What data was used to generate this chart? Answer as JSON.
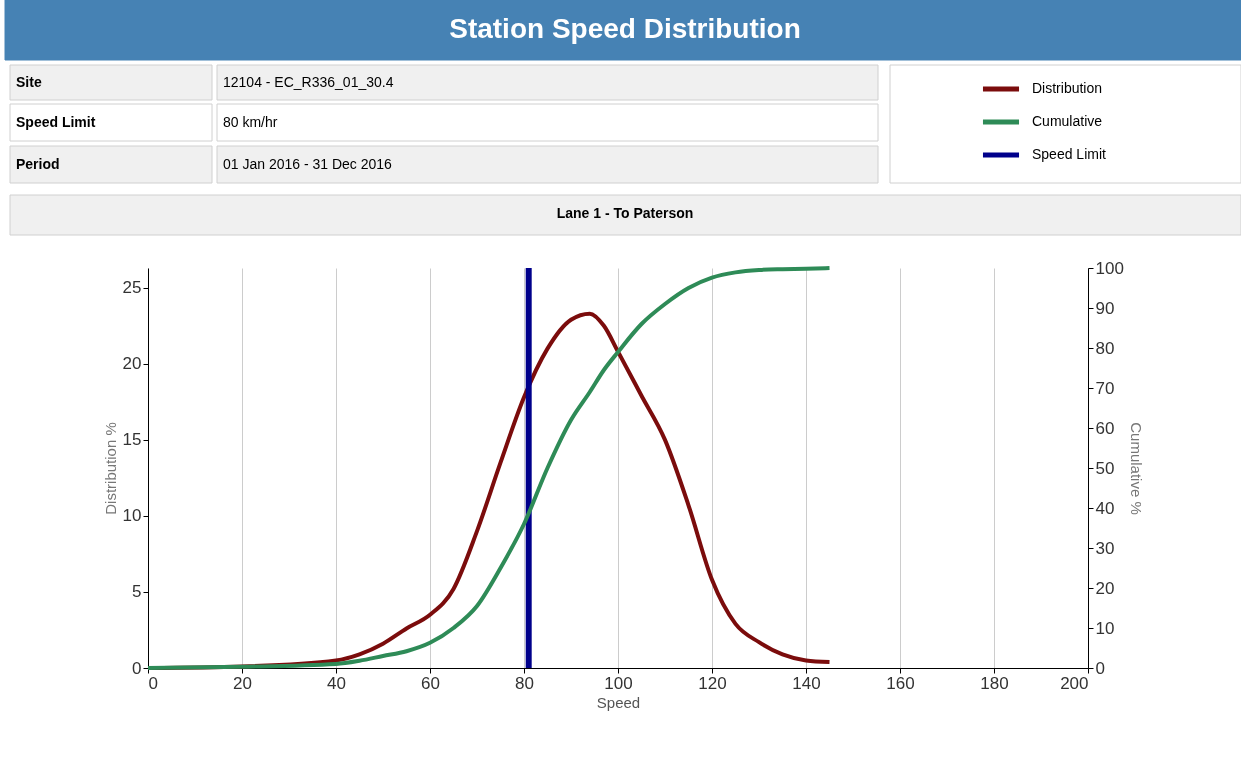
{
  "chart_data": {
    "type": "line",
    "title": "Station Speed Distribution",
    "subtitle": "Lane 1 - To Paterson",
    "xlabel": "Speed",
    "ylabel": "Distribution %",
    "y2label": "Cumulative %",
    "annotations": [
      "Site",
      "12104 - EC_R336_01_30.4",
      "Speed Limit",
      "80 km/hr",
      "Period",
      "01 Jan 2016 - 31 Dec 2016"
    ],
    "x": [
      0,
      20,
      40,
      45,
      50,
      55,
      60,
      65,
      70,
      75,
      80,
      85,
      90,
      94,
      97,
      100,
      105,
      110,
      115,
      120,
      125,
      130,
      135,
      140,
      145
    ],
    "series": [
      {
        "name": "Distribution",
        "color": "#7b0c0c",
        "values": [
          0,
          0.1,
          0.5,
          0.9,
          1.6,
          2.6,
          3.5,
          5.2,
          9.0,
          13.5,
          17.8,
          21.0,
          22.9,
          23.3,
          22.5,
          20.8,
          17.9,
          15.0,
          10.7,
          5.8,
          2.9,
          1.7,
          0.9,
          0.5,
          0.4
        ]
      },
      {
        "name": "Cumulative",
        "color": "#2e8b57",
        "axis": "y2",
        "values": [
          0,
          0.3,
          1,
          1.8,
          3,
          4.2,
          6.3,
          10,
          15.5,
          25,
          36,
          50,
          62,
          69,
          74.5,
          79,
          86,
          91,
          95,
          97.6,
          98.9,
          99.5,
          99.7,
          99.8,
          100
        ]
      }
    ],
    "ref_lines": [
      {
        "axis": "x",
        "value": 81,
        "label": "Speed Limit",
        "color": "#00008b"
      }
    ],
    "xlim": [
      0,
      200
    ],
    "xticks": [
      0,
      20,
      40,
      60,
      80,
      100,
      120,
      140,
      160,
      180,
      200
    ],
    "ylim": [
      0,
      26.3
    ],
    "yticks": [
      0,
      5,
      10,
      15,
      20,
      25
    ],
    "y2lim": [
      0,
      100
    ],
    "y2ticks": [
      0,
      10,
      20,
      30,
      40,
      50,
      60,
      70,
      80,
      90,
      100
    ],
    "grid": "x",
    "legend": "top right",
    "marker": "none",
    "line_style": "solid"
  }
}
